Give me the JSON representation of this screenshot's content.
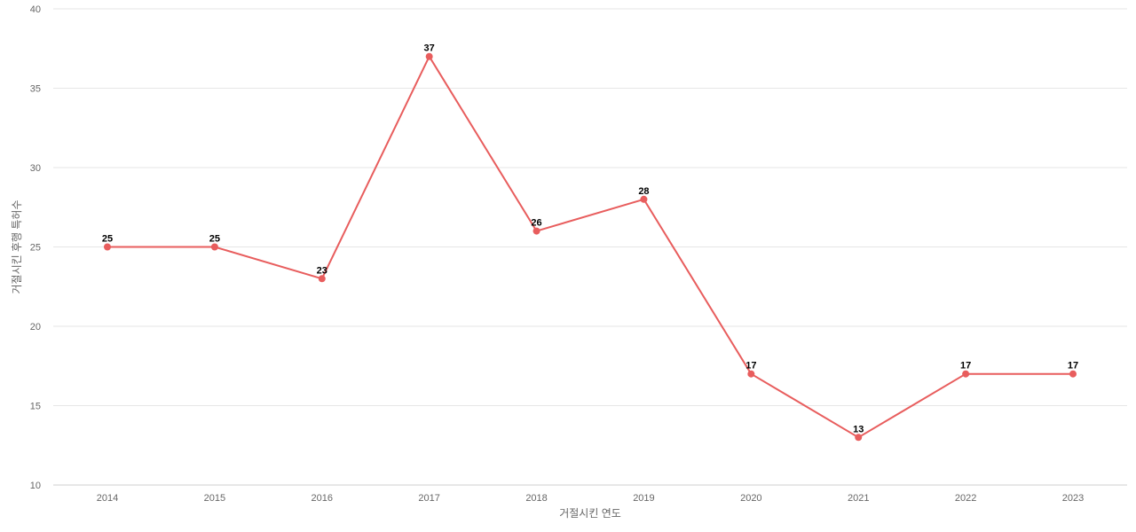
{
  "chart_data": {
    "type": "line",
    "title": "",
    "xlabel": "거절시킨 연도",
    "ylabel": "거절시킨 후행 특허수",
    "x": [
      "2014",
      "2015",
      "2016",
      "2017",
      "2018",
      "2019",
      "2020",
      "2021",
      "2022",
      "2023"
    ],
    "series": [
      {
        "values": [
          25,
          25,
          23,
          37,
          26,
          28,
          17,
          13,
          17,
          17
        ],
        "color": "#e85d5d"
      }
    ],
    "ylim": [
      10,
      40
    ],
    "yticks": [
      10,
      15,
      20,
      25,
      30,
      35,
      40
    ],
    "grid": true,
    "legend": "none",
    "data_labels": true
  }
}
